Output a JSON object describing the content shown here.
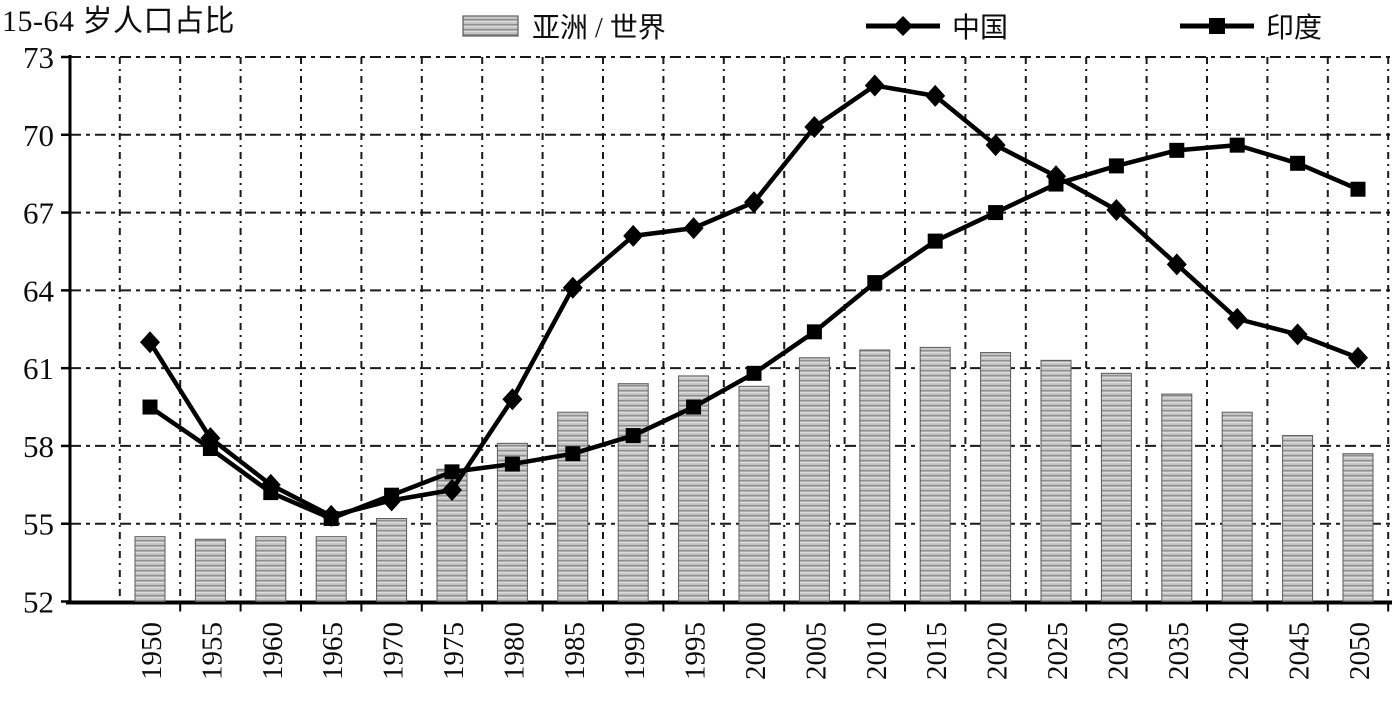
{
  "title": "15-64 岁人口占比",
  "legend": {
    "asia_world": "亚洲 / 世界",
    "china": "中国",
    "india": "印度"
  },
  "chart_data": {
    "type": "combo (bar + line)",
    "title": "15-64 岁人口占比",
    "xlabel": "",
    "ylabel": "",
    "categories": [
      "1950",
      "1955",
      "1960",
      "1965",
      "1970",
      "1975",
      "1980",
      "1985",
      "1990",
      "1995",
      "2000",
      "2005",
      "2010",
      "2015",
      "2020",
      "2025",
      "2030",
      "2035",
      "2040",
      "2045",
      "2050"
    ],
    "series": [
      {
        "name": "亚洲 / 世界",
        "type": "bar",
        "values": [
          54.5,
          54.4,
          54.5,
          54.5,
          55.2,
          57.1,
          58.1,
          59.3,
          60.4,
          60.7,
          60.3,
          61.4,
          61.7,
          61.8,
          61.6,
          61.3,
          60.8,
          60.0,
          59.3,
          58.4,
          57.7
        ]
      },
      {
        "name": "中国",
        "type": "line",
        "marker": "diamond",
        "values": [
          62.0,
          58.3,
          56.5,
          55.3,
          55.9,
          56.3,
          59.8,
          64.1,
          66.1,
          66.4,
          67.4,
          70.3,
          71.9,
          71.5,
          69.6,
          68.4,
          67.1,
          65.0,
          62.9,
          62.3,
          61.4
        ]
      },
      {
        "name": "印度",
        "type": "line",
        "marker": "square",
        "values": [
          59.5,
          57.9,
          56.2,
          55.2,
          56.1,
          57.0,
          57.3,
          57.7,
          58.4,
          59.5,
          60.8,
          62.4,
          64.3,
          65.9,
          67.0,
          68.1,
          68.8,
          69.4,
          69.6,
          68.9,
          67.9
        ]
      }
    ],
    "ylim": [
      52,
      73
    ],
    "yticks": [
      52,
      55,
      58,
      61,
      64,
      67,
      70,
      73
    ],
    "grid": "dashed horizontal and vertical",
    "legend_position": "top",
    "x_label_rotation": -90,
    "colors": {
      "line": "#000000",
      "bar_fill": "#c3c3c3",
      "bar_stripe_dark": "#8f8f8f",
      "bar_stripe_light": "#dedede",
      "bar_border": "#5a5a5a",
      "grid": "#1a1a1a"
    }
  }
}
